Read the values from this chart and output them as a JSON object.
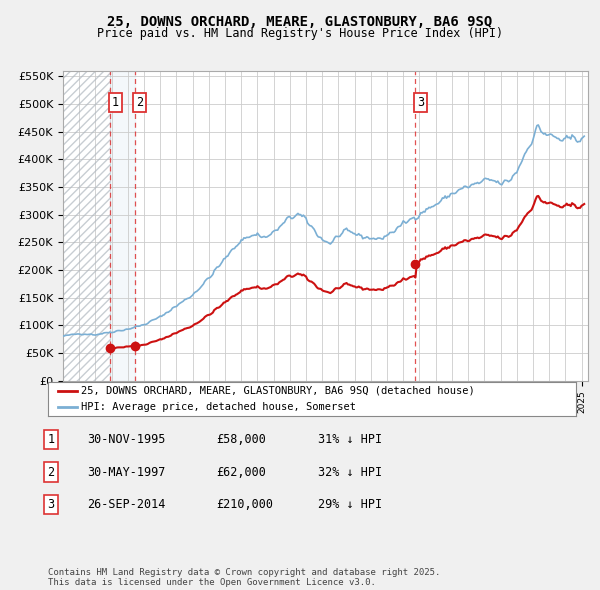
{
  "title": "25, DOWNS ORCHARD, MEARE, GLASTONBURY, BA6 9SQ",
  "subtitle": "Price paid vs. HM Land Registry's House Price Index (HPI)",
  "legend_line1": "25, DOWNS ORCHARD, MEARE, GLASTONBURY, BA6 9SQ (detached house)",
  "legend_line2": "HPI: Average price, detached house, Somerset",
  "footnote": "Contains HM Land Registry data © Crown copyright and database right 2025.\nThis data is licensed under the Open Government Licence v3.0.",
  "table": [
    [
      "1",
      "30-NOV-1995",
      "£58,000",
      "31% ↓ HPI"
    ],
    [
      "2",
      "30-MAY-1997",
      "£62,000",
      "32% ↓ HPI"
    ],
    [
      "3",
      "26-SEP-2014",
      "£210,000",
      "29% ↓ HPI"
    ]
  ],
  "sale_prices": [
    58000,
    62000,
    210000
  ],
  "sale_labels": [
    "1",
    "2",
    "3"
  ],
  "hpi_color": "#7bafd4",
  "paid_color": "#cc1111",
  "dashed_color": "#dd3333",
  "shade_color": "#dce9f5",
  "background_color": "#f0f0f0",
  "plot_bg_color": "#ffffff",
  "ylim": [
    0,
    560000
  ],
  "yticks": [
    0,
    50000,
    100000,
    150000,
    200000,
    250000,
    300000,
    350000,
    400000,
    450000,
    500000,
    550000
  ],
  "ytick_labels": [
    "£0",
    "£50K",
    "£100K",
    "£150K",
    "£200K",
    "£250K",
    "£300K",
    "£350K",
    "£400K",
    "£450K",
    "£500K",
    "£550K"
  ]
}
